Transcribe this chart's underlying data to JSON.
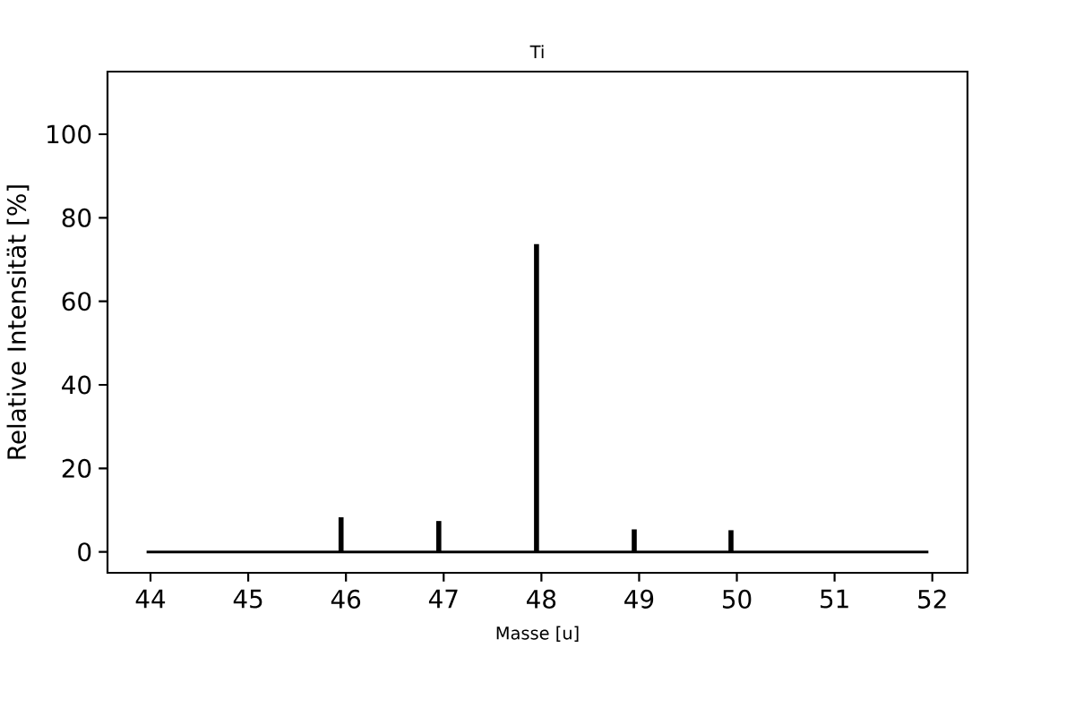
{
  "chart_data": {
    "type": "bar",
    "title": "Ti",
    "xlabel": "Masse [u]",
    "ylabel": "Relative Intensität [%]",
    "series": [
      {
        "color": "#000000",
        "x": [
          45.95,
          46.95,
          47.95,
          48.95,
          49.94
        ],
        "values": [
          8.3,
          7.4,
          73.7,
          5.4,
          5.2
        ]
      },
      {
        "type": "line",
        "color": "#000000",
        "x": [
          43.96,
          51.96
        ],
        "values": [
          0,
          0
        ]
      }
    ],
    "xlim": [
      43.56,
      52.36
    ],
    "ylim": [
      -5,
      115
    ],
    "xticks": [
      44,
      45,
      46,
      47,
      48,
      49,
      50,
      51,
      52
    ],
    "yticks": [
      0,
      20,
      40,
      60,
      80,
      100
    ]
  }
}
